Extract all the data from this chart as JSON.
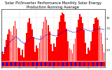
{
  "title": "Solar PV/Inverter Performance Monthly Solar Energy Production Running Average",
  "bar_values": [
    2.1,
    1.5,
    3.2,
    4.8,
    6.1,
    7.2,
    6.8,
    5.9,
    8.1,
    9.2,
    7.4,
    3.1,
    2.8,
    1.2,
    2.5,
    0.8,
    4.2,
    6.5,
    8.9,
    9.8,
    8.5,
    7.2,
    5.5,
    2.0,
    3.5,
    2.8,
    4.1,
    5.8,
    7.5,
    9.1,
    10.2,
    9.5,
    8.2,
    6.8,
    3.9,
    2.2,
    4.0,
    3.2,
    5.5,
    7.2,
    9.0,
    10.5,
    11.2,
    10.8,
    9.1,
    7.5,
    4.5,
    2.8,
    2.5,
    1.8,
    3.8,
    5.2,
    7.8,
    9.5,
    10.8,
    10.2,
    8.8,
    7.1,
    4.2,
    1.5,
    3.1,
    2.4,
    4.5,
    6.8,
    8.5,
    9.8,
    10.1,
    9.5,
    8.0,
    6.5,
    3.8,
    1.9
  ],
  "running_avg": [
    2.1,
    1.8,
    2.3,
    3.0,
    3.7,
    4.2,
    4.6,
    4.8,
    5.1,
    5.5,
    5.5,
    5.2,
    4.9,
    4.5,
    4.3,
    4.0,
    4.0,
    4.3,
    4.7,
    5.1,
    5.3,
    5.4,
    5.4,
    5.2,
    5.1,
    5.0,
    4.9,
    5.0,
    5.2,
    5.5,
    5.8,
    6.0,
    6.1,
    6.2,
    6.1,
    5.9,
    5.9,
    5.8,
    5.8,
    5.9,
    6.1,
    6.3,
    6.6,
    6.8,
    6.9,
    7.0,
    7.0,
    6.9,
    6.8,
    6.6,
    6.6,
    6.6,
    6.7,
    6.9,
    7.1,
    7.2,
    7.3,
    7.3,
    7.3,
    7.1,
    7.0,
    6.9,
    6.9,
    7.0,
    7.1,
    7.2,
    7.3,
    7.4,
    7.4,
    7.4,
    7.3,
    7.2
  ],
  "bar_color": "#ff0000",
  "avg_color": "#0000cc",
  "background_color": "#ffffff",
  "grid_color": "#aaaaaa",
  "ylim": [
    0,
    12
  ],
  "yticks": [
    2.5,
    5.0,
    7.5,
    10.0
  ],
  "ytick_labels": [
    "2.5",
    "5.",
    "7.5",
    "10."
  ],
  "title_fontsize": 3.8,
  "axis_fontsize": 2.8,
  "bottom_strip_color": "#ff0000",
  "bottom_blue_color": "#0000ff"
}
